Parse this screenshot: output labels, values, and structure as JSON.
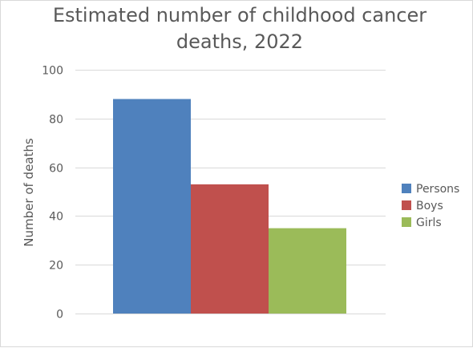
{
  "chart_data": {
    "type": "bar",
    "title_lines": [
      "Estimated number of childhood cancer",
      "deaths, 2022"
    ],
    "xlabel": "",
    "ylabel": "Number of deaths",
    "ylim": [
      0,
      100
    ],
    "yticks": [
      0,
      20,
      40,
      60,
      80,
      100
    ],
    "categories": [
      ""
    ],
    "grid": true,
    "legend_position": "right",
    "series": [
      {
        "name": "Persons",
        "values": [
          88
        ],
        "color": "#4f81bd"
      },
      {
        "name": "Boys",
        "values": [
          53
        ],
        "color": "#c0504d"
      },
      {
        "name": "Girls",
        "values": [
          35
        ],
        "color": "#9bbb59"
      }
    ]
  }
}
